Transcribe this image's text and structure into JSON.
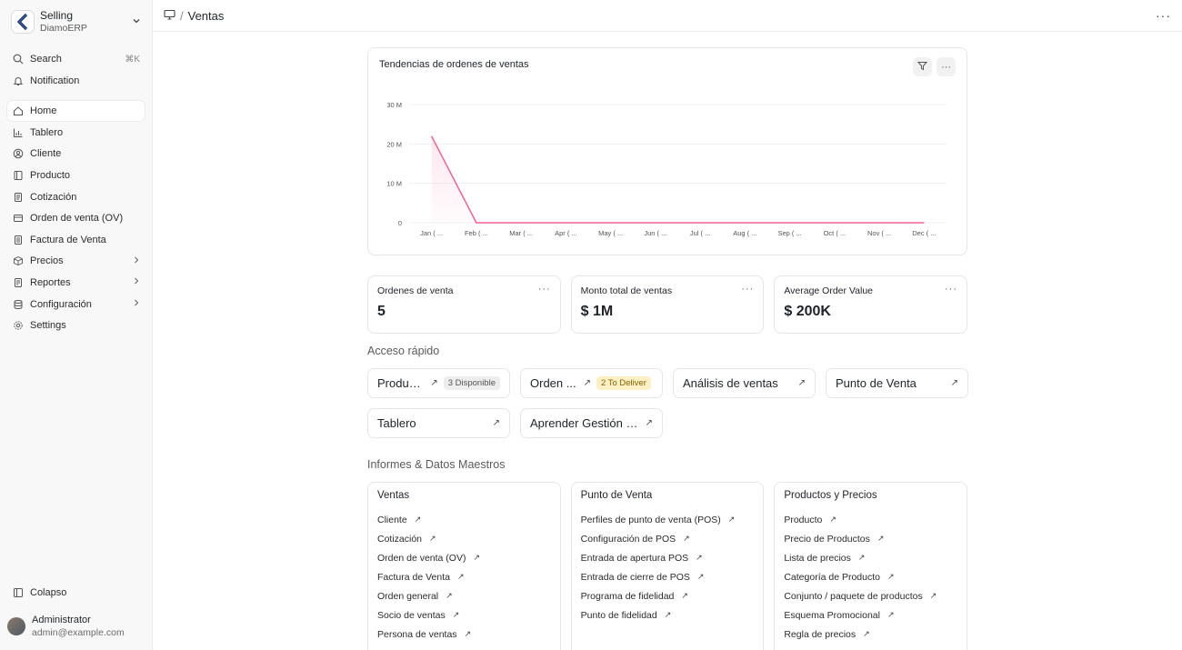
{
  "app": {
    "title": "Selling",
    "subtitle": "DiamoERP"
  },
  "sidebar": {
    "search_label": "Search",
    "search_shortcut": "⌘K",
    "notification_label": "Notification",
    "items": [
      {
        "label": "Home",
        "icon": "home-icon"
      },
      {
        "label": "Tablero",
        "icon": "chart-icon"
      },
      {
        "label": "Cliente",
        "icon": "user-icon"
      },
      {
        "label": "Producto",
        "icon": "book-icon"
      },
      {
        "label": "Cotización",
        "icon": "document-icon"
      },
      {
        "label": "Orden de venta (OV)",
        "icon": "card-icon"
      },
      {
        "label": "Factura de Venta",
        "icon": "invoice-icon"
      },
      {
        "label": "Precios",
        "icon": "box-icon"
      },
      {
        "label": "Reportes",
        "icon": "report-icon"
      },
      {
        "label": "Configuración",
        "icon": "database-icon"
      },
      {
        "label": "Settings",
        "icon": "gear-icon"
      }
    ],
    "collapse_label": "Colapso",
    "user": {
      "name": "Administrator",
      "email": "admin@example.com"
    }
  },
  "breadcrumb": {
    "page": "Ventas"
  },
  "chart": {
    "title": "Tendencias de ordenes de ventas",
    "color": "#f06292"
  },
  "chart_data": {
    "type": "line",
    "title": "Tendencias de ordenes de ventas",
    "categories": [
      "Jan ( ...",
      "Feb ( ...",
      "Mar ( ...",
      "Apr ( ...",
      "May ( ...",
      "Jun ( ...",
      "Jul ( ...",
      "Aug ( ...",
      "Sep ( ...",
      "Oct ( ...",
      "Nov ( ...",
      "Dec ( ..."
    ],
    "values": [
      22000000,
      0,
      0,
      0,
      0,
      0,
      0,
      0,
      0,
      0,
      0,
      0
    ],
    "yticks": [
      "0",
      "10 M",
      "20 M",
      "30 M"
    ],
    "ylim": [
      0,
      30000000
    ],
    "grid": true
  },
  "number_cards": [
    {
      "label": "Ordenes de venta",
      "value": "5"
    },
    {
      "label": "Monto total de ventas",
      "value": "$ 1M"
    },
    {
      "label": "Average Order Value",
      "value": "$ 200K"
    }
  ],
  "quick_access": {
    "title": "Acceso rápido",
    "items": [
      {
        "label": "Producto",
        "badge": "3 Disponible",
        "badge_color": "gray"
      },
      {
        "label": "Orden ...",
        "badge": "2 To Deliver",
        "badge_color": "yellow"
      },
      {
        "label": "Análisis de ventas"
      },
      {
        "label": "Punto de Venta"
      },
      {
        "label": "Tablero"
      },
      {
        "label": "Aprender Gestión d..."
      }
    ]
  },
  "reports": {
    "title": "Informes & Datos Maestros",
    "cards": [
      {
        "title": "Ventas",
        "links": [
          "Cliente",
          "Cotización",
          "Orden de venta (OV)",
          "Factura de Venta",
          "Orden general",
          "Socio de ventas",
          "Persona de ventas"
        ]
      },
      {
        "title": "Punto de Venta",
        "links": [
          "Perfiles de punto de venta (POS)",
          "Configuración de POS",
          "Entrada de apertura POS",
          "Entrada de cierre de POS",
          "Programa de fidelidad",
          "Punto de fidelidad"
        ]
      },
      {
        "title": "Productos y Precios",
        "links": [
          "Producto",
          "Precio de Productos",
          "Lista de precios",
          "Categoría de Producto",
          "Conjunto / paquete de productos",
          "Esquema Promocional",
          "Regla de precios"
        ]
      }
    ]
  }
}
